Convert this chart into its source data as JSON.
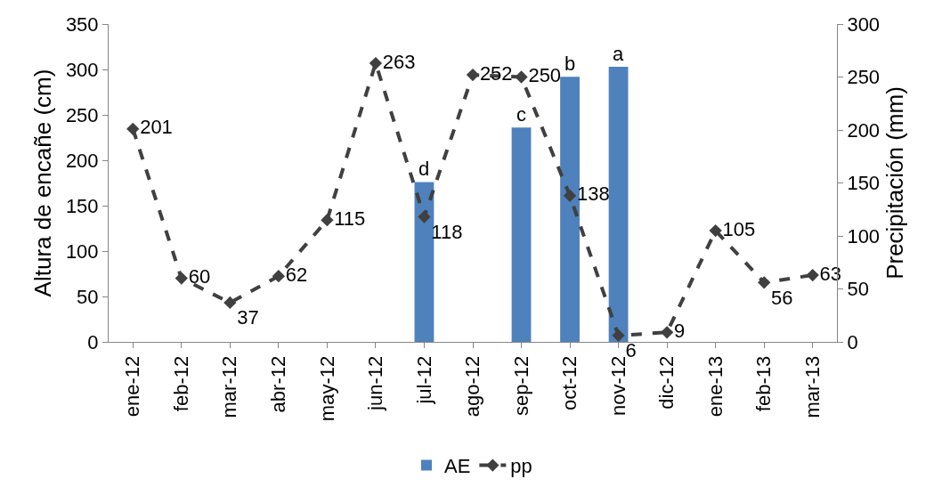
{
  "chart_data": {
    "type": "bar",
    "ylabel": "Altura de encañe (cm)",
    "y2label": "Precipitación (mm)",
    "categories": [
      "ene-12",
      "feb-12",
      "mar-12",
      "abr-12",
      "may-12",
      "jun-12",
      "jul-12",
      "ago-12",
      "sep-12",
      "oct-12",
      "nov-12",
      "dic-12",
      "ene-13",
      "feb-13",
      "mar-13"
    ],
    "series": [
      {
        "name": "AE",
        "color": "#4f81bd",
        "values": [
          null,
          null,
          null,
          null,
          null,
          null,
          176,
          null,
          236,
          292,
          303,
          null,
          null,
          null,
          null
        ]
      },
      {
        "name": "pp",
        "type": "line",
        "axis": "y2",
        "color": "#404040",
        "marker": "diamond",
        "line_style": "dashed",
        "values": [
          201,
          60,
          37,
          62,
          115,
          263,
          118,
          252,
          250,
          138,
          6,
          9,
          105,
          56,
          63
        ],
        "value_labels": [
          "201",
          "60",
          "37",
          "62",
          "115",
          "263",
          "118",
          "252",
          "250",
          "138",
          "6",
          "9",
          "105",
          "56",
          "63"
        ]
      }
    ],
    "annotations": [
      {
        "text": "d",
        "x": "jul-12",
        "y": 176
      },
      {
        "text": "c",
        "x": "sep-12",
        "y": 236
      },
      {
        "text": "b",
        "x": "oct-12",
        "y": 292
      },
      {
        "text": "a",
        "x": "nov-12",
        "y": 303
      }
    ],
    "ylim": [
      0,
      350
    ],
    "yticks": [
      0,
      50,
      100,
      150,
      200,
      250,
      300,
      350
    ],
    "y2lim": [
      0,
      300
    ],
    "y2ticks": [
      0,
      50,
      100,
      150,
      200,
      250,
      300
    ],
    "grid": false,
    "legend": "bottom"
  }
}
